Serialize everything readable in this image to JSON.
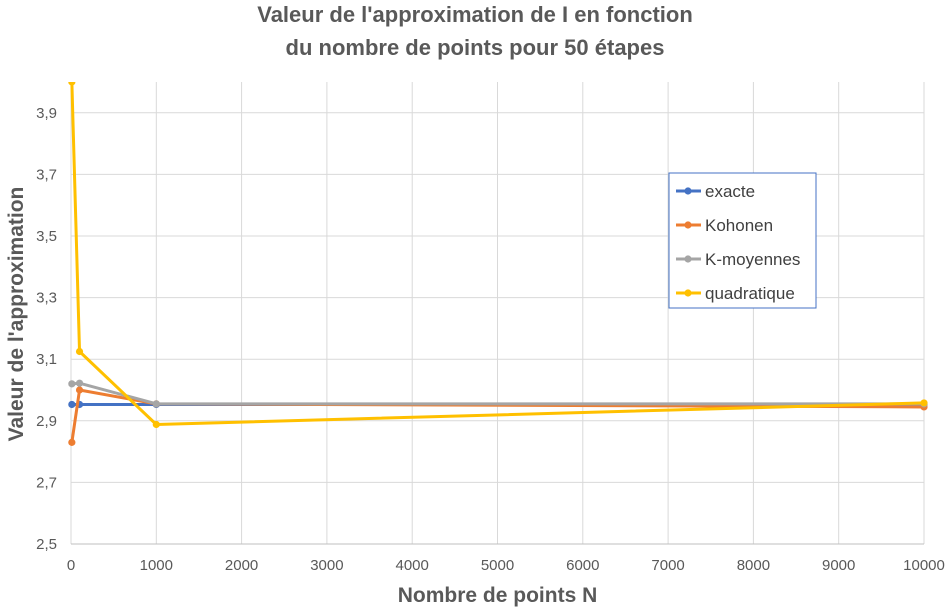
{
  "chart_data": {
    "type": "line",
    "title_lines": [
      "Valeur de l'approximation de I en fonction",
      "du nombre de points pour 50 étapes"
    ],
    "xlabel": "Nombre de points N",
    "ylabel": "Valeur de l'approximation",
    "xlim": [
      0,
      10000
    ],
    "ylim": [
      2.5,
      4.0
    ],
    "x_ticks": [
      0,
      1000,
      2000,
      3000,
      4000,
      5000,
      6000,
      7000,
      8000,
      9000,
      10000
    ],
    "x_tick_labels": [
      "0",
      "1000",
      "2000",
      "3000",
      "4000",
      "5000",
      "6000",
      "7000",
      "8000",
      "9000",
      "10000"
    ],
    "y_ticks": [
      2.5,
      2.7,
      2.9,
      3.1,
      3.3,
      3.5,
      3.7,
      3.9
    ],
    "y_tick_labels": [
      "2,5",
      "2,7",
      "2,9",
      "3,1",
      "3,3",
      "3,5",
      "3,7",
      "3,9"
    ],
    "grid": true,
    "legend_position": "right",
    "series": [
      {
        "name": "exacte",
        "color": "#4472C4",
        "x": [
          10,
          100,
          1000,
          10000
        ],
        "y": [
          2.953,
          2.953,
          2.953,
          2.953
        ]
      },
      {
        "name": "Kohonen",
        "color": "#ED7D31",
        "x": [
          10,
          100,
          1000,
          10000
        ],
        "y": [
          2.83,
          3.0,
          2.955,
          2.945
        ]
      },
      {
        "name": "K-moyennes",
        "color": "#A5A5A5",
        "x": [
          10,
          100,
          1000,
          10000
        ],
        "y": [
          3.02,
          3.022,
          2.955,
          2.955
        ]
      },
      {
        "name": "quadratique",
        "color": "#FFC000",
        "x": [
          10,
          100,
          1000,
          10000
        ],
        "y": [
          4.0,
          3.125,
          2.888,
          2.958
        ]
      }
    ]
  }
}
